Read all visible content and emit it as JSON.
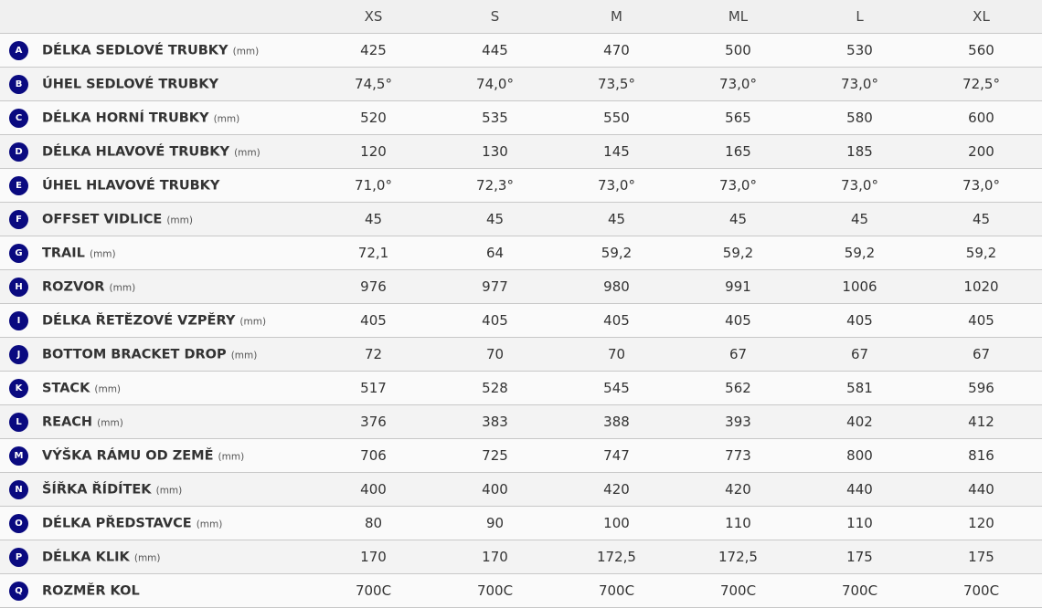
{
  "sizes": [
    "XS",
    "S",
    "M",
    "ML",
    "L",
    "XL"
  ],
  "accent": "#0a0a80",
  "rows": [
    {
      "letter": "A",
      "label": "DÉLKA SEDLOVÉ TRUBKY",
      "unit": "(mm)",
      "values": [
        "425",
        "445",
        "470",
        "500",
        "530",
        "560"
      ]
    },
    {
      "letter": "B",
      "label": "ÚHEL SEDLOVÉ TRUBKY",
      "unit": "",
      "values": [
        "74,5°",
        "74,0°",
        "73,5°",
        "73,0°",
        "73,0°",
        "72,5°"
      ]
    },
    {
      "letter": "C",
      "label": "DÉLKA HORNÍ TRUBKY",
      "unit": "(mm)",
      "values": [
        "520",
        "535",
        "550",
        "565",
        "580",
        "600"
      ]
    },
    {
      "letter": "D",
      "label": "DÉLKA HLAVOVÉ TRUBKY",
      "unit": "(mm)",
      "values": [
        "120",
        "130",
        "145",
        "165",
        "185",
        "200"
      ]
    },
    {
      "letter": "E",
      "label": "ÚHEL HLAVOVÉ TRUBKY",
      "unit": "",
      "values": [
        "71,0°",
        "72,3°",
        "73,0°",
        "73,0°",
        "73,0°",
        "73,0°"
      ]
    },
    {
      "letter": "F",
      "label": "OFFSET VIDLICE",
      "unit": "(mm)",
      "values": [
        "45",
        "45",
        "45",
        "45",
        "45",
        "45"
      ]
    },
    {
      "letter": "G",
      "label": "TRAIL",
      "unit": "(mm)",
      "values": [
        "72,1",
        "64",
        "59,2",
        "59,2",
        "59,2",
        "59,2"
      ]
    },
    {
      "letter": "H",
      "label": "ROZVOR",
      "unit": "(mm)",
      "values": [
        "976",
        "977",
        "980",
        "991",
        "1006",
        "1020"
      ]
    },
    {
      "letter": "I",
      "label": "DÉLKA ŘETĚZOVÉ VZPĚRY",
      "unit": "(mm)",
      "values": [
        "405",
        "405",
        "405",
        "405",
        "405",
        "405"
      ]
    },
    {
      "letter": "J",
      "label": "BOTTOM BRACKET DROP",
      "unit": "(mm)",
      "values": [
        "72",
        "70",
        "70",
        "67",
        "67",
        "67"
      ]
    },
    {
      "letter": "K",
      "label": "STACK",
      "unit": "(mm)",
      "values": [
        "517",
        "528",
        "545",
        "562",
        "581",
        "596"
      ]
    },
    {
      "letter": "L",
      "label": "REACH",
      "unit": "(mm)",
      "values": [
        "376",
        "383",
        "388",
        "393",
        "402",
        "412"
      ]
    },
    {
      "letter": "M",
      "label": "VÝŠKA RÁMU OD ZEMĚ",
      "unit": "(mm)",
      "values": [
        "706",
        "725",
        "747",
        "773",
        "800",
        "816"
      ]
    },
    {
      "letter": "N",
      "label": "ŠÍŘKA ŘÍDÍTEK",
      "unit": "(mm)",
      "values": [
        "400",
        "400",
        "420",
        "420",
        "440",
        "440"
      ]
    },
    {
      "letter": "O",
      "label": "DÉLKA PŘEDSTAVCE",
      "unit": "(mm)",
      "values": [
        "80",
        "90",
        "100",
        "110",
        "110",
        "120"
      ]
    },
    {
      "letter": "P",
      "label": "DÉLKA KLIK",
      "unit": "(mm)",
      "values": [
        "170",
        "170",
        "172,5",
        "172,5",
        "175",
        "175"
      ]
    },
    {
      "letter": "Q",
      "label": "ROZMĚR KOL",
      "unit": "",
      "values": [
        "700C",
        "700C",
        "700C",
        "700C",
        "700C",
        "700C"
      ]
    }
  ]
}
